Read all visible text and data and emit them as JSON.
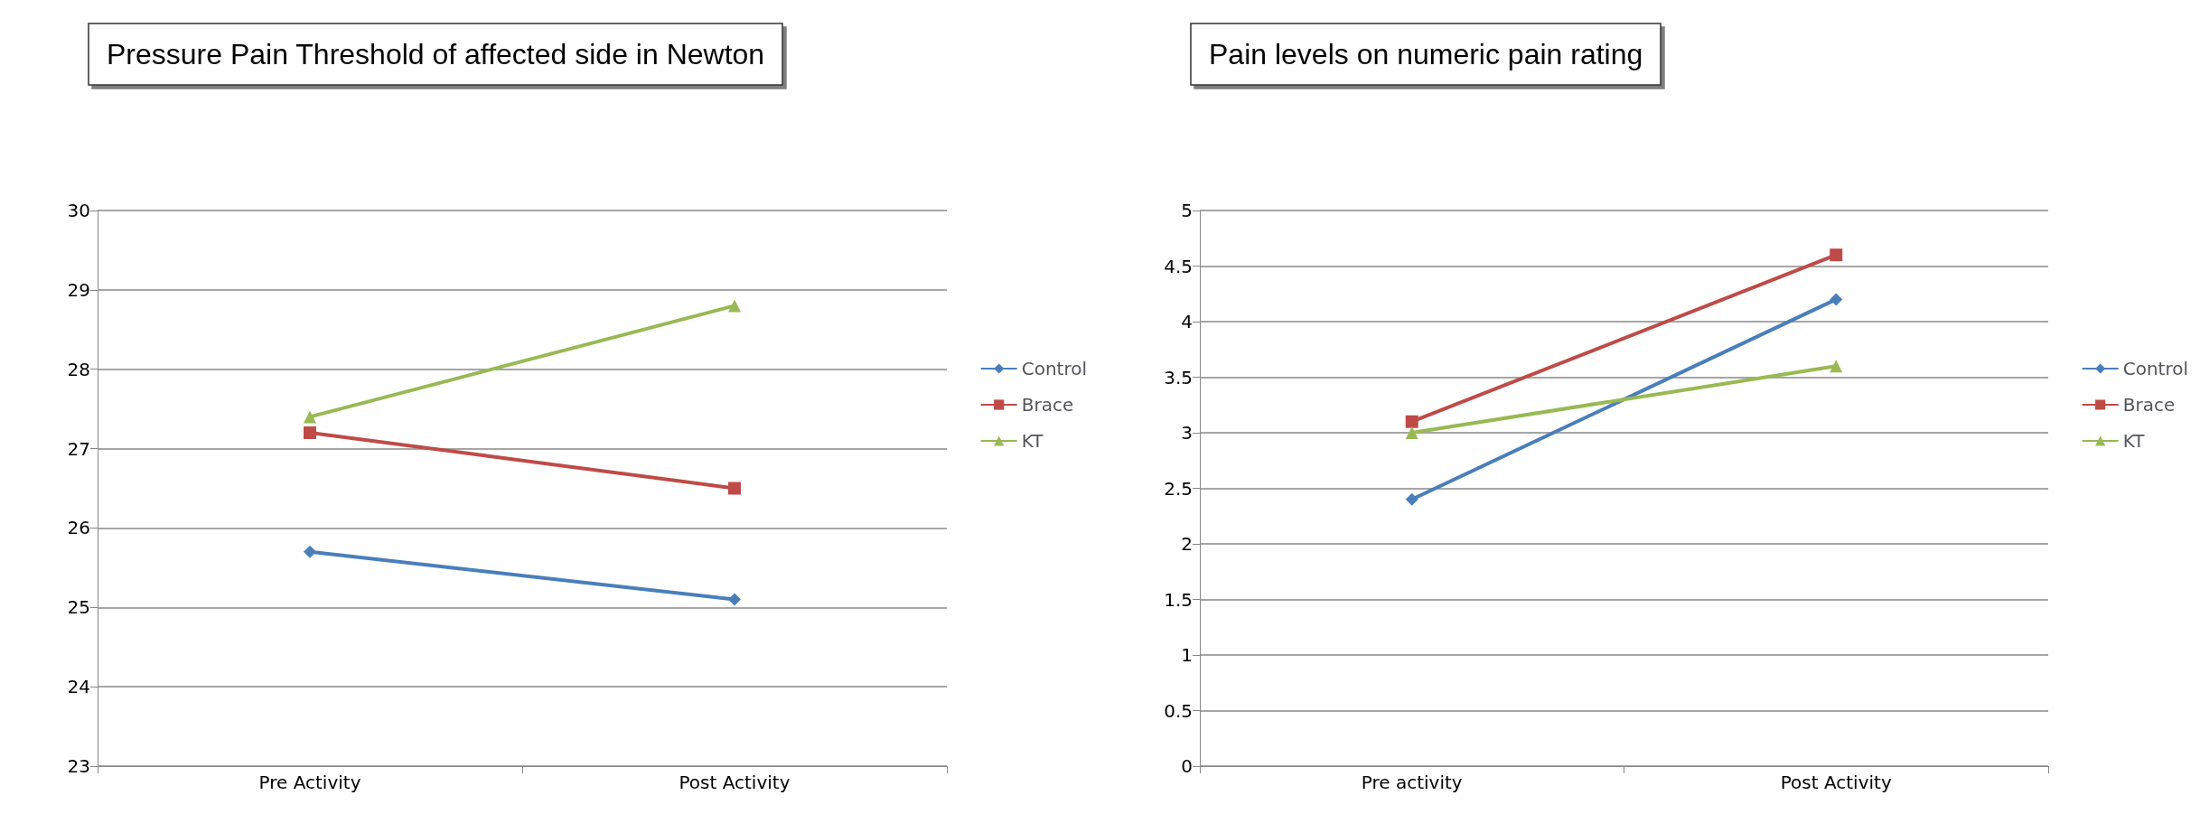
{
  "chart_data": [
    {
      "type": "line",
      "title": "Pressure Pain Threshold of affected side in Newton",
      "categories": [
        "Pre Activity",
        "Post Activity"
      ],
      "series": [
        {
          "name": "Control",
          "color": "#4a7ebb",
          "marker": "diamond",
          "values": [
            25.7,
            25.1
          ]
        },
        {
          "name": "Brace",
          "color": "#be4b48",
          "marker": "square",
          "values": [
            27.2,
            26.5
          ]
        },
        {
          "name": "KT",
          "color": "#98b954",
          "marker": "triangle",
          "values": [
            27.4,
            28.8
          ]
        }
      ],
      "ylim": [
        23,
        30
      ],
      "yticks": [
        23,
        24,
        25,
        26,
        27,
        28,
        29,
        30
      ],
      "grid": "y",
      "legend": "right"
    },
    {
      "type": "line",
      "title": "Pain levels on numeric pain rating",
      "categories": [
        "Pre activity",
        "Post Activity"
      ],
      "series": [
        {
          "name": "Control",
          "color": "#4a7ebb",
          "marker": "diamond",
          "values": [
            2.4,
            4.2
          ]
        },
        {
          "name": "Brace",
          "color": "#be4b48",
          "marker": "square",
          "values": [
            3.1,
            4.6
          ]
        },
        {
          "name": "KT",
          "color": "#98b954",
          "marker": "triangle",
          "values": [
            3.0,
            3.6
          ]
        }
      ],
      "ylim": [
        0,
        5
      ],
      "yticks": [
        0,
        0.5,
        1,
        1.5,
        2,
        2.5,
        3,
        3.5,
        4,
        4.5,
        5
      ],
      "grid": "y",
      "legend": "right"
    }
  ]
}
